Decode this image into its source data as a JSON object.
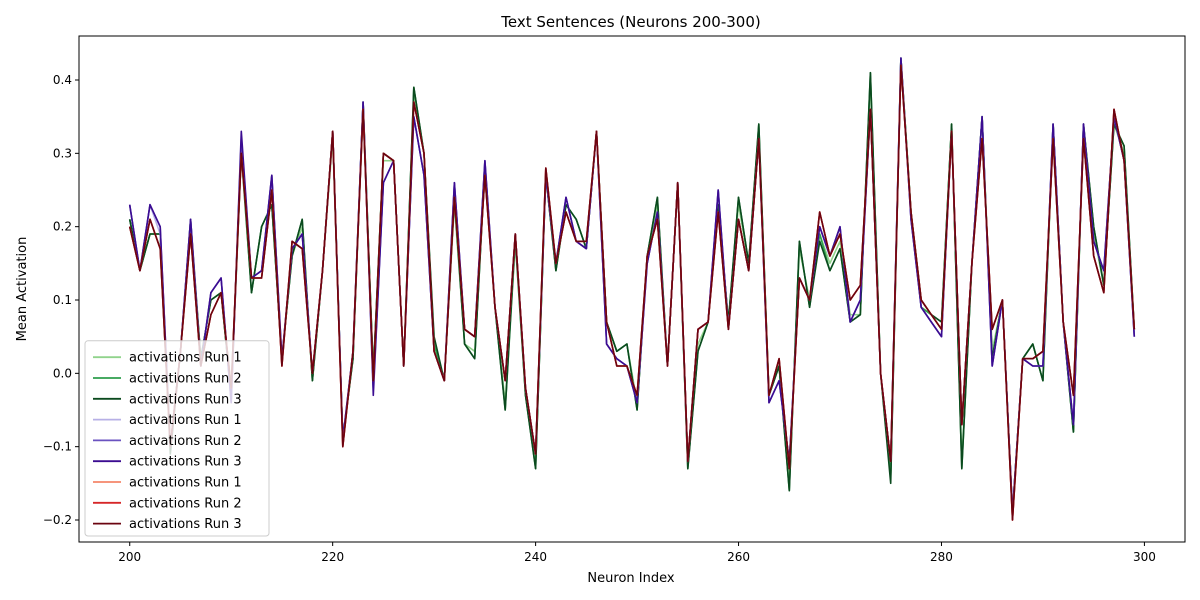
{
  "chart_data": {
    "type": "line",
    "title": "Text Sentences (Neurons 200-300)",
    "xlabel": "Neuron Index",
    "ylabel": "Mean Activation",
    "xlim": [
      195,
      304
    ],
    "ylim": [
      -0.23,
      0.46
    ],
    "xticks": [
      200,
      220,
      240,
      260,
      280,
      300
    ],
    "yticks": [
      -0.2,
      -0.1,
      0.0,
      0.1,
      0.2,
      0.3,
      0.4
    ],
    "ytick_labels": [
      "−0.2",
      "−0.1",
      "0.0",
      "0.1",
      "0.2",
      "0.3",
      "0.4"
    ],
    "grid": false,
    "legend_position": "lower left",
    "x": [
      200,
      201,
      202,
      203,
      204,
      205,
      206,
      207,
      208,
      209,
      210,
      211,
      212,
      213,
      214,
      215,
      216,
      217,
      218,
      219,
      220,
      221,
      222,
      223,
      224,
      225,
      226,
      227,
      228,
      229,
      230,
      231,
      232,
      233,
      234,
      235,
      236,
      237,
      238,
      239,
      240,
      241,
      242,
      243,
      244,
      245,
      246,
      247,
      248,
      249,
      250,
      251,
      252,
      253,
      254,
      255,
      256,
      257,
      258,
      259,
      260,
      261,
      262,
      263,
      264,
      265,
      266,
      267,
      268,
      269,
      270,
      271,
      272,
      273,
      274,
      275,
      276,
      277,
      278,
      279,
      280,
      281,
      282,
      283,
      284,
      285,
      286,
      287,
      288,
      289,
      290,
      291,
      292,
      293,
      294,
      295,
      296,
      297,
      298,
      299
    ],
    "series": [
      {
        "name": "activations Run 1",
        "color": "#90d38c",
        "values": [
          0.21,
          0.14,
          0.19,
          0.19,
          -0.1,
          0.03,
          0.2,
          0.02,
          0.1,
          0.11,
          -0.03,
          0.3,
          0.11,
          0.2,
          0.23,
          0.02,
          0.16,
          0.2,
          -0.01,
          0.14,
          0.32,
          -0.09,
          0.02,
          0.36,
          0.0,
          0.29,
          0.29,
          0.01,
          0.38,
          0.3,
          0.04,
          -0.01,
          0.23,
          0.04,
          0.03,
          0.28,
          0.09,
          -0.04,
          0.18,
          -0.03,
          -0.12,
          0.27,
          0.15,
          0.23,
          0.21,
          0.17,
          0.33,
          0.07,
          0.03,
          0.04,
          -0.04,
          0.16,
          0.23,
          0.01,
          0.26,
          -0.12,
          0.04,
          0.07,
          0.23,
          0.07,
          0.23,
          0.15,
          0.33,
          -0.03,
          0.01,
          -0.15,
          0.17,
          0.1,
          0.19,
          0.15,
          0.18,
          0.08,
          0.08,
          0.4,
          0.0,
          -0.14,
          0.43,
          0.22,
          0.09,
          0.08,
          0.06,
          0.34,
          -0.12,
          0.15,
          0.35,
          0.03,
          0.1,
          -0.19,
          0.02,
          0.04,
          -0.01,
          0.33,
          0.07,
          -0.08,
          0.33,
          0.19,
          0.12,
          0.34,
          0.3,
          0.06
        ]
      },
      {
        "name": "activations Run 2",
        "color": "#2e9e4d",
        "values": [
          0.21,
          0.14,
          0.19,
          0.19,
          -0.1,
          0.03,
          0.2,
          0.02,
          0.1,
          0.11,
          -0.03,
          0.3,
          0.11,
          0.2,
          0.23,
          0.02,
          0.16,
          0.21,
          -0.01,
          0.14,
          0.33,
          -0.09,
          0.02,
          0.37,
          0.0,
          0.3,
          0.29,
          0.01,
          0.39,
          0.3,
          0.04,
          -0.01,
          0.24,
          0.04,
          0.02,
          0.28,
          0.09,
          -0.05,
          0.18,
          -0.03,
          -0.13,
          0.27,
          0.14,
          0.23,
          0.21,
          0.17,
          0.33,
          0.07,
          0.03,
          0.04,
          -0.05,
          0.16,
          0.24,
          0.01,
          0.26,
          -0.13,
          0.03,
          0.07,
          0.23,
          0.07,
          0.24,
          0.15,
          0.34,
          -0.03,
          0.01,
          -0.16,
          0.18,
          0.09,
          0.19,
          0.14,
          0.17,
          0.07,
          0.08,
          0.41,
          0.0,
          -0.14,
          0.43,
          0.22,
          0.09,
          0.08,
          0.07,
          0.34,
          -0.13,
          0.15,
          0.35,
          0.02,
          0.1,
          -0.19,
          0.02,
          0.04,
          -0.01,
          0.34,
          0.07,
          -0.08,
          0.34,
          0.2,
          0.12,
          0.34,
          0.31,
          0.06
        ]
      },
      {
        "name": "activations Run 3",
        "color": "#0b4a1e",
        "values": [
          0.21,
          0.14,
          0.19,
          0.19,
          -0.11,
          0.03,
          0.21,
          0.02,
          0.1,
          0.11,
          -0.03,
          0.31,
          0.11,
          0.2,
          0.23,
          0.02,
          0.16,
          0.21,
          -0.01,
          0.14,
          0.33,
          -0.09,
          0.02,
          0.37,
          0.0,
          0.3,
          0.29,
          0.01,
          0.39,
          0.3,
          0.05,
          -0.01,
          0.24,
          0.04,
          0.02,
          0.28,
          0.09,
          -0.05,
          0.19,
          -0.03,
          -0.13,
          0.27,
          0.14,
          0.23,
          0.21,
          0.17,
          0.33,
          0.07,
          0.03,
          0.04,
          -0.05,
          0.16,
          0.24,
          0.01,
          0.26,
          -0.13,
          0.03,
          0.07,
          0.23,
          0.07,
          0.24,
          0.15,
          0.34,
          -0.03,
          0.01,
          -0.16,
          0.18,
          0.09,
          0.18,
          0.14,
          0.17,
          0.07,
          0.08,
          0.41,
          0.0,
          -0.15,
          0.43,
          0.22,
          0.1,
          0.08,
          0.07,
          0.34,
          -0.13,
          0.15,
          0.35,
          0.02,
          0.1,
          -0.19,
          0.02,
          0.04,
          -0.01,
          0.34,
          0.07,
          -0.08,
          0.34,
          0.2,
          0.12,
          0.34,
          0.31,
          0.06
        ]
      },
      {
        "name": "activations Run 1",
        "color": "#b7b0e6",
        "values": [
          0.23,
          0.14,
          0.23,
          0.19,
          -0.1,
          0.03,
          0.21,
          0.01,
          0.11,
          0.13,
          -0.04,
          0.32,
          0.13,
          0.14,
          0.27,
          0.02,
          0.17,
          0.19,
          0.0,
          0.14,
          0.33,
          -0.09,
          0.03,
          0.37,
          -0.02,
          0.26,
          0.29,
          0.01,
          0.35,
          0.27,
          0.03,
          -0.01,
          0.26,
          0.06,
          0.05,
          0.29,
          0.09,
          -0.01,
          0.19,
          -0.02,
          -0.11,
          0.27,
          0.15,
          0.24,
          0.18,
          0.17,
          0.33,
          0.04,
          0.02,
          0.01,
          -0.04,
          0.15,
          0.22,
          0.01,
          0.26,
          -0.12,
          0.06,
          0.07,
          0.25,
          0.06,
          0.21,
          0.14,
          0.32,
          -0.04,
          -0.01,
          -0.12,
          0.13,
          0.1,
          0.2,
          0.16,
          0.2,
          0.07,
          0.1,
          0.36,
          0.0,
          -0.12,
          0.43,
          0.21,
          0.09,
          0.07,
          0.05,
          0.33,
          -0.07,
          0.15,
          0.35,
          0.01,
          0.1,
          -0.19,
          0.02,
          0.01,
          0.01,
          0.34,
          0.07,
          -0.07,
          0.34,
          0.18,
          0.14,
          0.35,
          0.29,
          0.05
        ]
      },
      {
        "name": "activations Run 2",
        "color": "#6a52c0",
        "values": [
          0.23,
          0.14,
          0.23,
          0.2,
          -0.1,
          0.03,
          0.21,
          0.01,
          0.11,
          0.13,
          -0.04,
          0.32,
          0.13,
          0.14,
          0.27,
          0.02,
          0.17,
          0.19,
          0.0,
          0.14,
          0.33,
          -0.09,
          0.03,
          0.37,
          -0.02,
          0.26,
          0.29,
          0.01,
          0.35,
          0.27,
          0.03,
          -0.01,
          0.26,
          0.06,
          0.05,
          0.29,
          0.09,
          -0.01,
          0.19,
          -0.02,
          -0.11,
          0.27,
          0.15,
          0.24,
          0.18,
          0.17,
          0.33,
          0.04,
          0.02,
          0.01,
          -0.04,
          0.15,
          0.22,
          0.01,
          0.26,
          -0.12,
          0.06,
          0.07,
          0.25,
          0.06,
          0.21,
          0.14,
          0.32,
          -0.04,
          -0.01,
          -0.12,
          0.13,
          0.1,
          0.2,
          0.16,
          0.2,
          0.07,
          0.1,
          0.36,
          0.0,
          -0.12,
          0.43,
          0.21,
          0.09,
          0.07,
          0.05,
          0.33,
          -0.07,
          0.15,
          0.35,
          0.01,
          0.1,
          -0.19,
          0.02,
          0.01,
          0.01,
          0.34,
          0.07,
          -0.07,
          0.34,
          0.18,
          0.14,
          0.35,
          0.29,
          0.05
        ]
      },
      {
        "name": "activations Run 3",
        "color": "#3b0c91",
        "values": [
          0.23,
          0.14,
          0.23,
          0.2,
          -0.1,
          0.03,
          0.21,
          0.01,
          0.11,
          0.13,
          -0.04,
          0.33,
          0.13,
          0.14,
          0.27,
          0.02,
          0.17,
          0.19,
          0.0,
          0.14,
          0.33,
          -0.09,
          0.03,
          0.37,
          -0.03,
          0.26,
          0.29,
          0.01,
          0.35,
          0.27,
          0.03,
          -0.01,
          0.26,
          0.06,
          0.05,
          0.29,
          0.09,
          -0.01,
          0.19,
          -0.02,
          -0.11,
          0.27,
          0.15,
          0.24,
          0.18,
          0.17,
          0.33,
          0.04,
          0.02,
          0.01,
          -0.04,
          0.15,
          0.22,
          0.01,
          0.26,
          -0.12,
          0.06,
          0.07,
          0.25,
          0.06,
          0.21,
          0.14,
          0.32,
          -0.04,
          -0.01,
          -0.12,
          0.13,
          0.1,
          0.2,
          0.16,
          0.2,
          0.07,
          0.1,
          0.36,
          0.0,
          -0.12,
          0.43,
          0.21,
          0.09,
          0.07,
          0.05,
          0.33,
          -0.07,
          0.15,
          0.35,
          0.01,
          0.1,
          -0.19,
          0.02,
          0.01,
          0.01,
          0.34,
          0.07,
          -0.07,
          0.34,
          0.18,
          0.14,
          0.35,
          0.29,
          0.05
        ]
      },
      {
        "name": "activations Run 1",
        "color": "#f5866a",
        "values": [
          0.2,
          0.14,
          0.21,
          0.17,
          -0.1,
          0.03,
          0.19,
          0.01,
          0.08,
          0.11,
          -0.02,
          0.3,
          0.13,
          0.13,
          0.25,
          0.01,
          0.18,
          0.17,
          0.0,
          0.14,
          0.33,
          -0.1,
          0.03,
          0.36,
          -0.01,
          0.3,
          0.29,
          0.01,
          0.37,
          0.3,
          0.03,
          -0.01,
          0.24,
          0.06,
          0.05,
          0.27,
          0.09,
          -0.01,
          0.19,
          -0.02,
          -0.11,
          0.28,
          0.15,
          0.22,
          0.18,
          0.18,
          0.33,
          0.07,
          0.01,
          0.01,
          -0.03,
          0.16,
          0.21,
          0.01,
          0.26,
          -0.12,
          0.06,
          0.07,
          0.22,
          0.06,
          0.21,
          0.14,
          0.32,
          -0.03,
          0.02,
          -0.13,
          0.13,
          0.1,
          0.22,
          0.16,
          0.19,
          0.1,
          0.12,
          0.36,
          0.0,
          -0.12,
          0.42,
          0.22,
          0.1,
          0.08,
          0.06,
          0.33,
          -0.07,
          0.15,
          0.32,
          0.06,
          0.1,
          -0.2,
          0.02,
          0.02,
          0.03,
          0.32,
          0.07,
          -0.03,
          0.32,
          0.16,
          0.11,
          0.36,
          0.29,
          0.06
        ]
      },
      {
        "name": "activations Run 2",
        "color": "#d62728",
        "values": [
          0.2,
          0.14,
          0.21,
          0.17,
          -0.1,
          0.03,
          0.19,
          0.01,
          0.08,
          0.11,
          -0.02,
          0.3,
          0.13,
          0.13,
          0.25,
          0.01,
          0.18,
          0.17,
          0.0,
          0.14,
          0.33,
          -0.1,
          0.03,
          0.36,
          -0.01,
          0.3,
          0.29,
          0.01,
          0.37,
          0.3,
          0.03,
          -0.01,
          0.24,
          0.06,
          0.05,
          0.27,
          0.09,
          -0.01,
          0.19,
          -0.02,
          -0.11,
          0.28,
          0.15,
          0.22,
          0.18,
          0.18,
          0.33,
          0.07,
          0.01,
          0.01,
          -0.03,
          0.16,
          0.21,
          0.01,
          0.26,
          -0.12,
          0.06,
          0.07,
          0.22,
          0.06,
          0.21,
          0.14,
          0.32,
          -0.03,
          0.02,
          -0.13,
          0.13,
          0.1,
          0.22,
          0.16,
          0.19,
          0.1,
          0.12,
          0.36,
          0.0,
          -0.12,
          0.42,
          0.22,
          0.1,
          0.08,
          0.06,
          0.33,
          -0.07,
          0.15,
          0.32,
          0.06,
          0.1,
          -0.2,
          0.02,
          0.02,
          0.03,
          0.32,
          0.07,
          -0.03,
          0.32,
          0.16,
          0.11,
          0.36,
          0.29,
          0.06
        ]
      },
      {
        "name": "activations Run 3",
        "color": "#6b0410",
        "values": [
          0.2,
          0.14,
          0.21,
          0.17,
          -0.1,
          0.03,
          0.19,
          0.01,
          0.08,
          0.11,
          -0.02,
          0.3,
          0.13,
          0.13,
          0.25,
          0.01,
          0.18,
          0.17,
          0.0,
          0.14,
          0.33,
          -0.1,
          0.03,
          0.36,
          -0.01,
          0.3,
          0.29,
          0.01,
          0.37,
          0.3,
          0.03,
          -0.01,
          0.24,
          0.06,
          0.05,
          0.27,
          0.09,
          -0.01,
          0.19,
          -0.02,
          -0.11,
          0.28,
          0.15,
          0.22,
          0.18,
          0.18,
          0.33,
          0.07,
          0.01,
          0.01,
          -0.03,
          0.16,
          0.21,
          0.01,
          0.26,
          -0.12,
          0.06,
          0.07,
          0.22,
          0.06,
          0.21,
          0.14,
          0.32,
          -0.03,
          0.02,
          -0.13,
          0.13,
          0.1,
          0.22,
          0.16,
          0.19,
          0.1,
          0.12,
          0.36,
          0.0,
          -0.12,
          0.42,
          0.22,
          0.1,
          0.08,
          0.06,
          0.33,
          -0.07,
          0.15,
          0.32,
          0.06,
          0.1,
          -0.2,
          0.02,
          0.02,
          0.03,
          0.32,
          0.07,
          -0.03,
          0.32,
          0.16,
          0.11,
          0.36,
          0.29,
          0.06
        ]
      }
    ]
  }
}
